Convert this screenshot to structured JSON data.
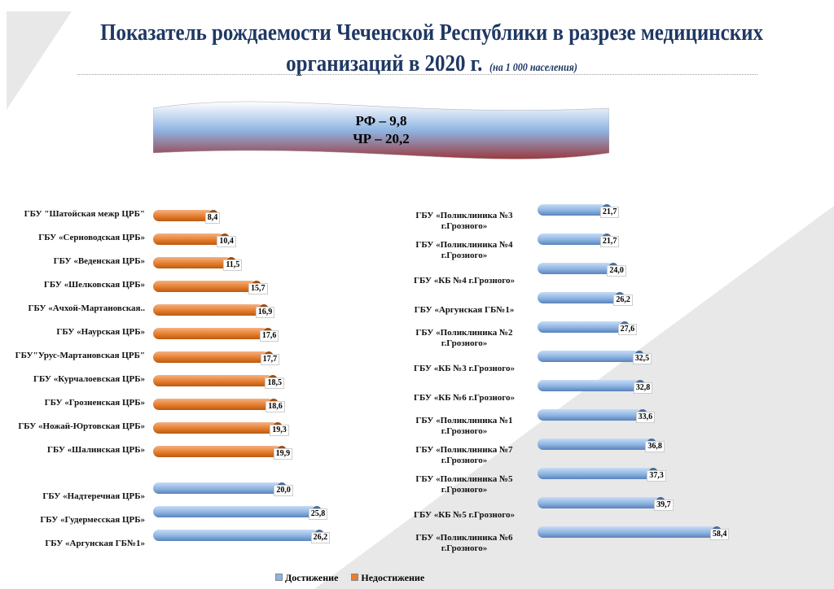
{
  "title_line1": "Показатель рождаемости Чеченской Республики в разрезе медицинских",
  "title_line2": "организаций в 2020 г.",
  "subtitle": "(на 1 000 населения)",
  "banner": {
    "line1": "РФ – 9,8",
    "line2": "ЧР – 20,2"
  },
  "colors": {
    "achieved": "#8db4e2",
    "not_achieved": "#e67e2e",
    "title": "#1f3864"
  },
  "chart_data": [
    {
      "type": "bar",
      "orientation": "horizontal",
      "categories": [
        "ГБУ \"Шатойская межр ЦРБ\"",
        "ГБУ «Серноводская ЦРБ»",
        "ГБУ «Веденская ЦРБ»",
        "ГБУ «Шелковская ЦРБ»",
        "ГБУ «Ачхой-Мартановская..",
        "ГБУ «Наурская ЦРБ»",
        "ГБУ\"Урус-Мартановская ЦРБ\"",
        "ГБУ «Курчалоевская ЦРБ»",
        "ГБУ «Грозненская ЦРБ»",
        "ГБУ «Ножай-Юртовская ЦРБ»",
        "ГБУ «Шалинская ЦРБ»",
        "ГБУ «Надтеречная ЦРБ»",
        "ГБУ «Гудермесская ЦРБ»",
        "ГБУ «Аргунская ГБ№1»"
      ],
      "values": [
        8.4,
        10.4,
        11.5,
        15.7,
        16.9,
        17.6,
        17.7,
        18.5,
        18.6,
        19.3,
        19.9,
        20.0,
        25.8,
        26.2
      ],
      "value_labels": [
        "8,4",
        "10,4",
        "11,5",
        "15,7",
        "16,9",
        "17,6",
        "17,7",
        "18,5",
        "18,6",
        "19,3",
        "19,9",
        "20,0",
        "25,8",
        "26,2"
      ],
      "series_of_point": [
        "not_achieved",
        "not_achieved",
        "not_achieved",
        "not_achieved",
        "not_achieved",
        "not_achieved",
        "not_achieved",
        "not_achieved",
        "not_achieved",
        "not_achieved",
        "not_achieved",
        "achieved",
        "achieved",
        "achieved"
      ]
    },
    {
      "type": "bar",
      "orientation": "horizontal",
      "categories": [
        [
          "ГБУ «Поликлиника №3",
          "г.Грозного»"
        ],
        [
          "ГБУ «Поликлиника №4",
          "г.Грозного»"
        ],
        [
          "ГБУ «КБ №4 г.Грозного»"
        ],
        [
          "ГБУ «Аргунская ГБ№1»"
        ],
        [
          "ГБУ «Поликлиника №2",
          "г.Грозного»"
        ],
        [
          "ГБУ «КБ №3 г.Грозного»"
        ],
        [
          "ГБУ «КБ №6 г.Грозного»"
        ],
        [
          "ГБУ «Поликлиника №1",
          "г.Грозного»"
        ],
        [
          "ГБУ «Поликлиника №7",
          "г.Грозного»"
        ],
        [
          "ГБУ «Поликлиника №5",
          "г.Грозного»"
        ],
        [
          "ГБУ «КБ №5 г.Грозного»"
        ],
        [
          "ГБУ «Поликлиника №6",
          "г.Грозного»"
        ]
      ],
      "values": [
        21.7,
        21.7,
        24.0,
        26.2,
        27.6,
        32.5,
        32.8,
        33.6,
        36.8,
        37.3,
        39.7,
        58.4
      ],
      "value_labels": [
        "21,7",
        "21,7",
        "24,0",
        "26,2",
        "27,6",
        "32,5",
        "32,8",
        "33,6",
        "36,8",
        "37,3",
        "39,7",
        "58,4"
      ],
      "series_of_point": [
        "achieved",
        "achieved",
        "achieved",
        "achieved",
        "achieved",
        "achieved",
        "achieved",
        "achieved",
        "achieved",
        "achieved",
        "achieved",
        "achieved"
      ]
    }
  ],
  "legend": [
    {
      "key": "achieved",
      "label": "Достижение"
    },
    {
      "key": "not_achieved",
      "label": "Недостижение"
    }
  ]
}
